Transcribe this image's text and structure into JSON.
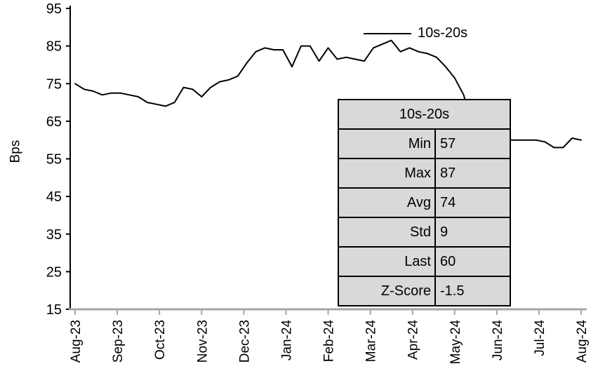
{
  "chart_data": {
    "type": "line",
    "title": "",
    "xlabel": "",
    "ylabel": "Bps",
    "ylim": [
      15,
      95
    ],
    "yticks": [
      15,
      25,
      35,
      45,
      55,
      65,
      75,
      85,
      95
    ],
    "categories": [
      "Aug-23",
      "Sep-23",
      "Oct-23",
      "Nov-23",
      "Dec-23",
      "Jan-24",
      "Feb-24",
      "Mar-24",
      "Apr-24",
      "May-24",
      "Jun-24",
      "Jul-24",
      "Aug-24"
    ],
    "grid": false,
    "legend_position": "top-right-inside",
    "line_color": "#000000",
    "axis_color": "#000000",
    "x_axis_color": "#a6a6a6",
    "series": [
      {
        "name": "10s-20s",
        "values": [
          75,
          73.5,
          73,
          72,
          72.5,
          72.5,
          72,
          71.5,
          70,
          69.5,
          69,
          70,
          74,
          73.5,
          71.5,
          74,
          75.5,
          76,
          77,
          80.5,
          83.5,
          84.5,
          84,
          84,
          79.5,
          85,
          85,
          81,
          84.5,
          81.5,
          82,
          81.5,
          81,
          84.5,
          85.5,
          86.5,
          83.5,
          84.5,
          83.5,
          83,
          82,
          79.5,
          76.5,
          72,
          63,
          60,
          60,
          60,
          60,
          60,
          60,
          60,
          59.5,
          58,
          58,
          60.5,
          60
        ]
      }
    ]
  },
  "legend": {
    "label": "10s-20s"
  },
  "stats_table": {
    "header": "10s-20s",
    "bg_color": "#d9d9d9",
    "border_color": "#000000",
    "rows": [
      {
        "label": "Min",
        "value": "57"
      },
      {
        "label": "Max",
        "value": "87"
      },
      {
        "label": "Avg",
        "value": "74"
      },
      {
        "label": "Std",
        "value": "9"
      },
      {
        "label": "Last",
        "value": "60"
      },
      {
        "label": "Z-Score",
        "value": "-1.5"
      }
    ]
  }
}
